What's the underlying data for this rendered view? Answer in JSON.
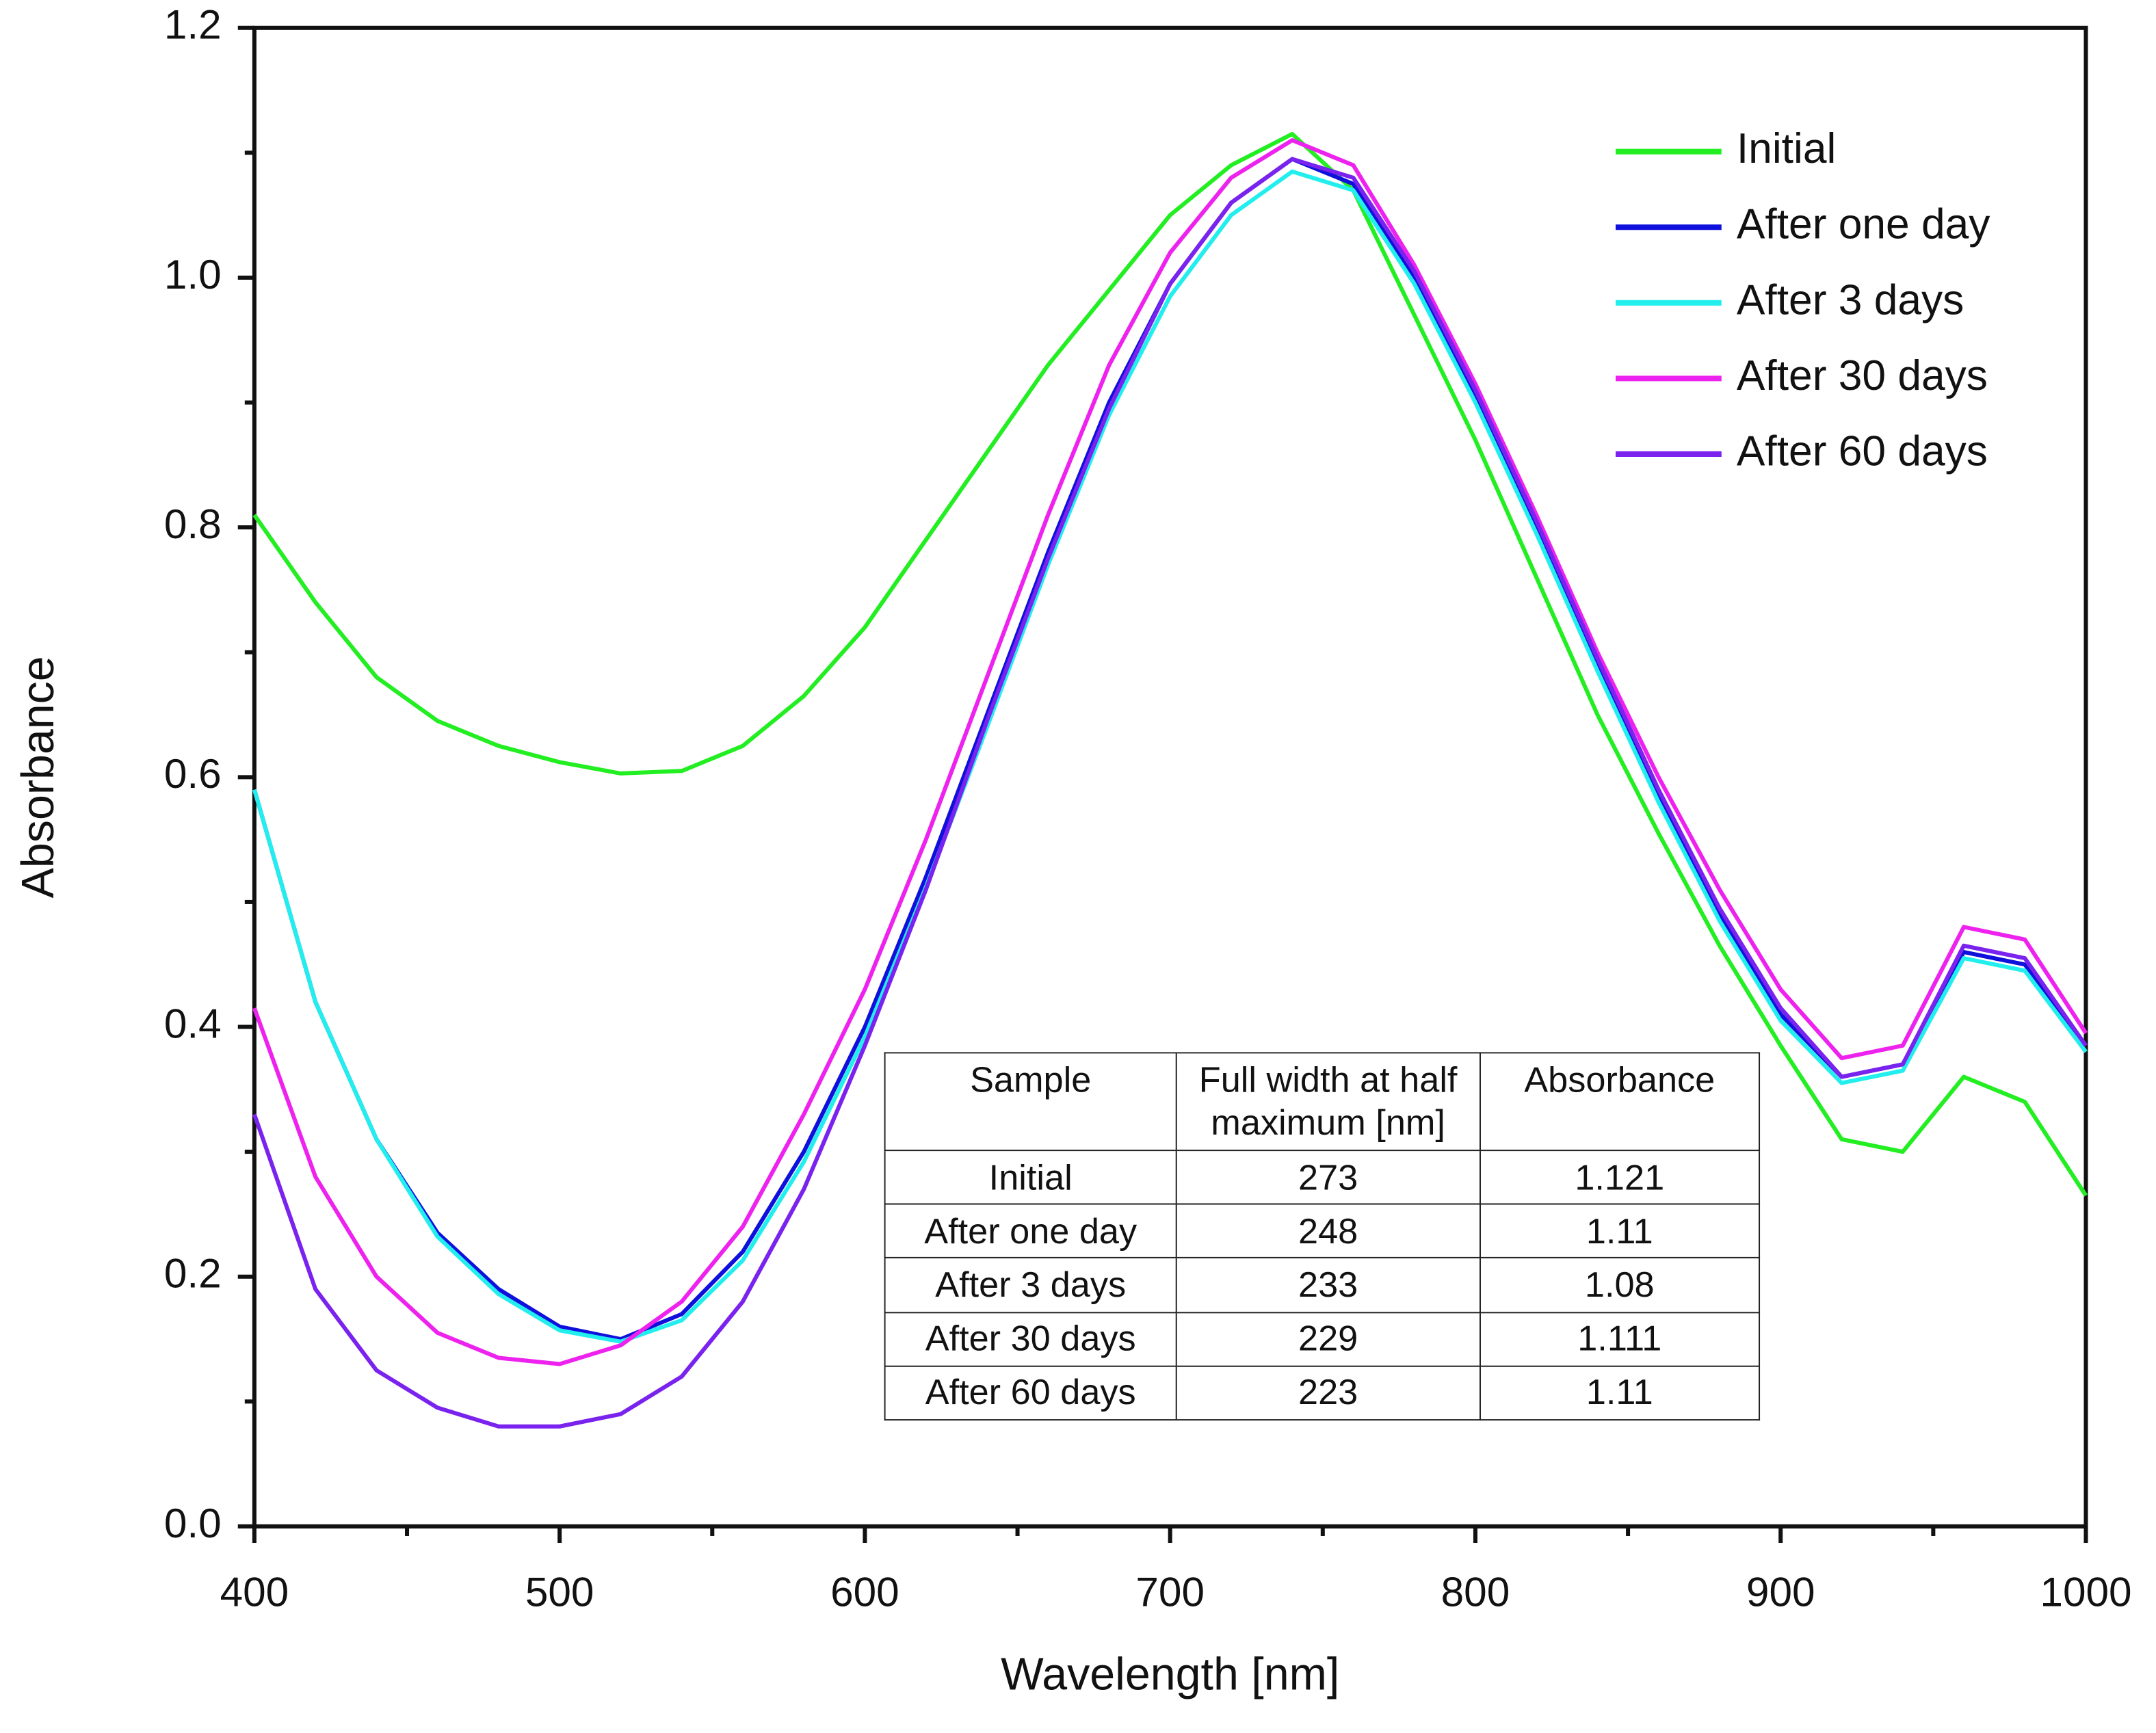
{
  "chart_data": {
    "type": "line",
    "xlabel": "Wavelength [nm]",
    "ylabel": "Absorbance",
    "x": [
      400,
      420,
      440,
      460,
      480,
      500,
      520,
      540,
      560,
      580,
      600,
      620,
      640,
      660,
      680,
      700,
      720,
      740,
      760,
      780,
      800,
      820,
      840,
      860,
      880,
      900,
      920,
      940,
      960,
      980,
      1000
    ],
    "series": [
      {
        "name": "Initial",
        "color": "#22ee22",
        "values": [
          0.81,
          0.74,
          0.68,
          0.645,
          0.625,
          0.612,
          0.603,
          0.605,
          0.625,
          0.665,
          0.72,
          0.79,
          0.86,
          0.93,
          0.99,
          1.05,
          1.09,
          1.115,
          1.07,
          0.97,
          0.87,
          0.76,
          0.65,
          0.555,
          0.465,
          0.385,
          0.31,
          0.3,
          0.36,
          0.34,
          0.265
        ]
      },
      {
        "name": "After one day",
        "color": "#1010dd",
        "values": [
          0.59,
          0.42,
          0.31,
          0.235,
          0.19,
          0.16,
          0.15,
          0.17,
          0.22,
          0.3,
          0.4,
          0.52,
          0.65,
          0.78,
          0.9,
          0.995,
          1.06,
          1.095,
          1.075,
          1.0,
          0.905,
          0.8,
          0.69,
          0.585,
          0.49,
          0.41,
          0.36,
          0.37,
          0.46,
          0.45,
          0.385
        ]
      },
      {
        "name": "After 3 days",
        "color": "#22eeee",
        "values": [
          0.59,
          0.42,
          0.31,
          0.232,
          0.186,
          0.157,
          0.148,
          0.165,
          0.213,
          0.292,
          0.392,
          0.512,
          0.64,
          0.77,
          0.89,
          0.985,
          1.05,
          1.085,
          1.07,
          0.995,
          0.9,
          0.795,
          0.685,
          0.58,
          0.485,
          0.405,
          0.355,
          0.365,
          0.455,
          0.445,
          0.38
        ]
      },
      {
        "name": "After 30 days",
        "color": "#ee22ee",
        "values": [
          0.415,
          0.28,
          0.2,
          0.155,
          0.135,
          0.13,
          0.145,
          0.18,
          0.24,
          0.33,
          0.43,
          0.55,
          0.68,
          0.81,
          0.93,
          1.02,
          1.08,
          1.11,
          1.09,
          1.01,
          0.915,
          0.81,
          0.7,
          0.6,
          0.51,
          0.43,
          0.375,
          0.385,
          0.48,
          0.47,
          0.395
        ]
      },
      {
        "name": "After 60 days",
        "color": "#7a22ee",
        "values": [
          0.33,
          0.19,
          0.125,
          0.095,
          0.08,
          0.08,
          0.09,
          0.12,
          0.18,
          0.27,
          0.385,
          0.51,
          0.645,
          0.775,
          0.895,
          0.995,
          1.06,
          1.095,
          1.08,
          1.005,
          0.91,
          0.805,
          0.695,
          0.59,
          0.495,
          0.415,
          0.36,
          0.37,
          0.465,
          0.455,
          0.385
        ]
      }
    ],
    "xlim": [
      400,
      1000
    ],
    "xticks": [
      400,
      500,
      600,
      700,
      800,
      900,
      1000
    ],
    "xminorticks": [
      450,
      550,
      650,
      750,
      850,
      950
    ],
    "ylim": [
      0,
      1.2
    ],
    "yticks": [
      {
        "value": 0,
        "label": "0.0"
      },
      {
        "value": 0.2,
        "label": "0.2"
      },
      {
        "value": 0.4,
        "label": "0.4"
      },
      {
        "value": 0.6,
        "label": "0.6"
      },
      {
        "value": 0.8,
        "label": "0.8"
      },
      {
        "value": 1,
        "label": "1.0"
      },
      {
        "value": 1.2,
        "label": "1.2"
      }
    ],
    "yminorticks": [
      0.1,
      0.3,
      0.5,
      0.7,
      0.9,
      1.1
    ],
    "legend": "upper right",
    "table": {
      "header": [
        "Sample",
        "Full width at half maximum [nm]",
        "Absorbance"
      ],
      "rows": [
        [
          "Initial",
          273,
          1.121
        ],
        [
          "After one day",
          248,
          1.11
        ],
        [
          "After 3 days",
          233,
          1.08
        ],
        [
          "After 30 days",
          229,
          1.111
        ],
        [
          "After 60 days",
          223,
          1.11
        ]
      ]
    }
  }
}
